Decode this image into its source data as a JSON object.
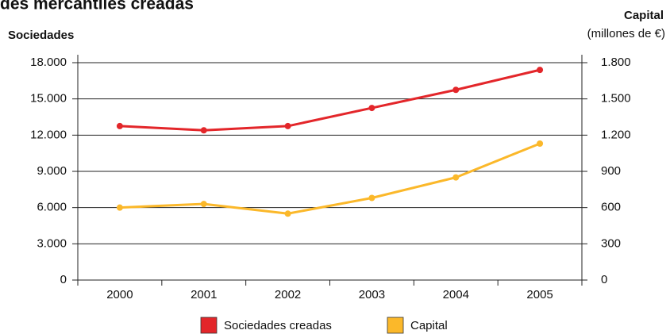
{
  "chart_data": {
    "type": "line",
    "title": "des mercantiles creadas",
    "ylabel": "Sociedades",
    "y2label": "Capital",
    "y2sublabel": "(millones de €)",
    "categories": [
      "2000",
      "2001",
      "2002",
      "2003",
      "2004",
      "2005"
    ],
    "series": [
      {
        "name": "Sociedades creadas",
        "color": "#e3262a",
        "values": [
          12750,
          12400,
          12750,
          14250,
          15750,
          17400
        ]
      },
      {
        "name": "Capital",
        "color": "#fbb82a",
        "axis": "y2",
        "values": [
          600,
          630,
          550,
          680,
          850,
          1130
        ]
      }
    ],
    "ylim": [
      0,
      18000
    ],
    "yticks": [
      0,
      {
        "value": 3000,
        "label": "3.000"
      },
      {
        "value": 6000,
        "label": "6.000"
      },
      {
        "value": 9000,
        "label": "9.000"
      },
      {
        "value": 12000,
        "label": "12.000"
      },
      {
        "value": 15000,
        "label": "15.000"
      },
      {
        "value": 18000,
        "label": "18.000"
      }
    ],
    "y2lim": [
      0,
      1800
    ],
    "y2ticks": [
      0,
      300,
      600,
      900,
      {
        "value": 1200,
        "label": "1.200"
      },
      {
        "value": 1500,
        "label": "1.500"
      },
      {
        "value": 1800,
        "label": "1.800"
      }
    ],
    "grid": true
  }
}
